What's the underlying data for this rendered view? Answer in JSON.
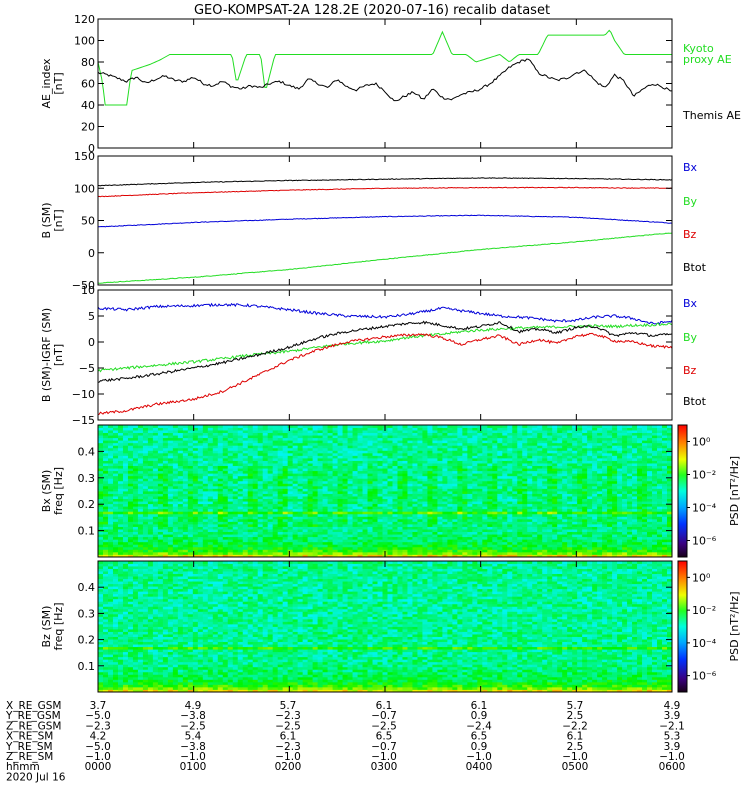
{
  "title": "GEO-KOMPSAT-2A 128.2E (2020-07-16) recalib dataset",
  "colors": {
    "bx": "#0000d8",
    "by": "#22dd22",
    "bz": "#dd0000",
    "btot": "#000000",
    "kyoto": "#22dd22",
    "themis": "#000000"
  },
  "chart_data": [
    {
      "type": "line",
      "panel": "ae",
      "ylabel": [
        "AE_index",
        "[nT]"
      ],
      "ylim": [
        0,
        120
      ],
      "yticks": [
        0,
        20,
        40,
        60,
        80,
        100,
        120
      ],
      "xlim": [
        0,
        6
      ],
      "series": [
        {
          "name": "Kyoto proxy AE",
          "legend": [
            "Kyoto",
            "proxy AE"
          ],
          "color_key": "kyoto",
          "x": [
            0,
            0.05,
            0.07,
            0.3,
            0.35,
            0.45,
            0.55,
            0.65,
            0.75,
            0.9,
            1.4,
            1.45,
            1.55,
            1.7,
            1.75,
            1.85,
            1.95,
            2.0,
            2.05,
            3.45,
            3.5,
            3.6,
            3.7,
            3.85,
            3.95,
            4.2,
            4.3,
            4.4,
            4.6,
            4.7,
            4.8,
            5.3,
            5.35,
            5.4,
            5.5,
            5.6,
            6.0
          ],
          "y": [
            80,
            60,
            40,
            40,
            72,
            75,
            78,
            82,
            87,
            87,
            87,
            60,
            87,
            87,
            52,
            87,
            87,
            87,
            87,
            87,
            87,
            108,
            87,
            87,
            80,
            87,
            80,
            87,
            87,
            105,
            105,
            105,
            110,
            100,
            87,
            87,
            87
          ]
        },
        {
          "name": "Themis AE",
          "legend": [
            "Themis AE"
          ],
          "color_key": "themis",
          "x": [
            0,
            0.1,
            0.2,
            0.3,
            0.4,
            0.5,
            0.6,
            0.7,
            0.8,
            0.9,
            1.0,
            1.1,
            1.2,
            1.3,
            1.4,
            1.5,
            1.6,
            1.7,
            1.8,
            1.9,
            2.0,
            2.1,
            2.2,
            2.3,
            2.4,
            2.5,
            2.6,
            2.7,
            2.8,
            2.9,
            3.0,
            3.1,
            3.2,
            3.3,
            3.4,
            3.5,
            3.6,
            3.7,
            3.8,
            3.9,
            4.0,
            4.1,
            4.2,
            4.3,
            4.4,
            4.5,
            4.6,
            4.7,
            4.8,
            4.9,
            5.0,
            5.1,
            5.2,
            5.3,
            5.4,
            5.5,
            5.6,
            5.7,
            5.8,
            5.9,
            6.0
          ],
          "y": [
            70,
            68,
            65,
            62,
            66,
            60,
            64,
            67,
            63,
            62,
            66,
            60,
            58,
            62,
            57,
            55,
            58,
            56,
            60,
            62,
            58,
            55,
            64,
            60,
            56,
            64,
            57,
            54,
            58,
            60,
            53,
            43,
            48,
            52,
            45,
            55,
            47,
            45,
            50,
            52,
            55,
            60,
            67,
            75,
            80,
            83,
            70,
            66,
            63,
            65,
            70,
            72,
            62,
            56,
            68,
            62,
            48,
            55,
            60,
            57,
            52
          ]
        }
      ]
    },
    {
      "type": "line",
      "panel": "bsm",
      "ylabel": [
        "B (SM)",
        "[nT]"
      ],
      "ylim": [
        -50,
        150
      ],
      "yticks": [
        -50,
        0,
        50,
        100,
        150
      ],
      "xlim": [
        0,
        6
      ],
      "series": [
        {
          "name": "Bx",
          "color_key": "bx",
          "x": [
            0,
            1,
            2,
            3,
            4,
            5,
            6
          ],
          "y": [
            40,
            47,
            52,
            56,
            58,
            55,
            46
          ]
        },
        {
          "name": "By",
          "color_key": "by",
          "x": [
            0,
            1,
            2,
            3,
            4,
            5,
            6
          ],
          "y": [
            -47,
            -38,
            -26,
            -10,
            5,
            17,
            31
          ]
        },
        {
          "name": "Bz",
          "color_key": "bz",
          "x": [
            0,
            1,
            2,
            3,
            4,
            5,
            6
          ],
          "y": [
            87,
            93,
            97,
            100,
            101,
            101,
            100
          ]
        },
        {
          "name": "Btot",
          "color_key": "btot",
          "x": [
            0,
            1,
            2,
            3,
            4,
            5,
            6
          ],
          "y": [
            104,
            109,
            112,
            114,
            116,
            115,
            113
          ]
        }
      ]
    },
    {
      "type": "line",
      "panel": "bdiff",
      "ylabel": [
        "B (SM)-IGRF (SM)",
        "[nT]"
      ],
      "ylim": [
        -15,
        10
      ],
      "yticks": [
        -15,
        -10,
        -5,
        0,
        5,
        10
      ],
      "xlim": [
        0,
        6
      ],
      "series": [
        {
          "name": "Bx",
          "color_key": "bx",
          "x": [
            0,
            0.3,
            0.6,
            1.0,
            1.3,
            1.6,
            2.0,
            2.3,
            2.6,
            3.0,
            3.2,
            3.4,
            3.6,
            3.8,
            4.0,
            4.2,
            4.4,
            4.6,
            4.8,
            5.0,
            5.2,
            5.4,
            5.6,
            5.8,
            6.0
          ],
          "y": [
            6.5,
            6.2,
            6.8,
            7.0,
            7.2,
            7.0,
            6.2,
            5.5,
            5.0,
            4.8,
            5.2,
            5.8,
            6.5,
            6.0,
            5.5,
            5.0,
            4.8,
            4.5,
            4.0,
            4.2,
            4.8,
            5.0,
            4.5,
            3.5,
            4.0
          ]
        },
        {
          "name": "By",
          "color_key": "by",
          "x": [
            0,
            0.3,
            0.6,
            1.0,
            1.3,
            1.6,
            2.0,
            2.3,
            2.6,
            3.0,
            3.2,
            3.4,
            3.6,
            3.8,
            4.0,
            4.2,
            4.4,
            4.6,
            4.8,
            5.0,
            5.2,
            5.4,
            5.6,
            5.8,
            6.0
          ],
          "y": [
            -5.5,
            -5.0,
            -4.5,
            -3.8,
            -3.2,
            -2.5,
            -1.8,
            -1.0,
            -0.3,
            0.2,
            0.8,
            1.2,
            1.5,
            2.0,
            2.3,
            2.5,
            2.7,
            2.8,
            2.9,
            3.0,
            3.1,
            3.0,
            3.2,
            3.3,
            3.5
          ]
        },
        {
          "name": "Bz",
          "color_key": "bz",
          "x": [
            0,
            0.3,
            0.6,
            1.0,
            1.3,
            1.6,
            2.0,
            2.3,
            2.6,
            3.0,
            3.2,
            3.4,
            3.6,
            3.8,
            4.0,
            4.2,
            4.4,
            4.6,
            4.8,
            5.0,
            5.2,
            5.4,
            5.6,
            5.8,
            6.0
          ],
          "y": [
            -13.8,
            -13.2,
            -12.0,
            -11.0,
            -9.5,
            -7.0,
            -3.5,
            -1.5,
            0.0,
            1.0,
            1.3,
            1.5,
            0.8,
            -0.5,
            0.5,
            1.2,
            -0.5,
            0.5,
            -0.3,
            1.2,
            1.5,
            0.2,
            0.0,
            -0.8,
            -1.0
          ]
        },
        {
          "name": "Btot",
          "color_key": "btot",
          "x": [
            0,
            0.3,
            0.6,
            1.0,
            1.3,
            1.6,
            2.0,
            2.3,
            2.6,
            3.0,
            3.2,
            3.4,
            3.6,
            3.8,
            4.0,
            4.2,
            4.4,
            4.6,
            4.8,
            5.0,
            5.2,
            5.4,
            5.6,
            5.8,
            6.0
          ],
          "y": [
            -7.5,
            -7.0,
            -6.2,
            -5.0,
            -4.0,
            -2.8,
            -1.0,
            0.8,
            2.0,
            3.0,
            3.5,
            3.8,
            3.2,
            2.5,
            3.0,
            3.8,
            2.0,
            2.5,
            1.8,
            2.8,
            3.0,
            1.2,
            1.8,
            1.2,
            1.5
          ]
        }
      ],
      "legend_order": [
        "Bx",
        "By",
        "Bz",
        "Btot"
      ]
    },
    {
      "type": "heatmap",
      "panel": "spec_bx",
      "ylabel": [
        "Bx (SM)",
        "freq [Hz]"
      ],
      "ylim": [
        0,
        0.5
      ],
      "yticks": [
        0.1,
        0.2,
        0.3,
        0.4
      ],
      "xlim": [
        0,
        6
      ],
      "colorbar": {
        "label": "PSD [nT²/Hz]",
        "ticks": [
          "10⁰",
          "10⁻²",
          "10⁻⁴",
          "10⁻⁶"
        ],
        "log_min": -7,
        "log_max": 1
      }
    },
    {
      "type": "heatmap",
      "panel": "spec_bz",
      "ylabel": [
        "Bz (SM)",
        "freq [Hz]"
      ],
      "ylim": [
        0,
        0.5
      ],
      "yticks": [
        0.1,
        0.2,
        0.3,
        0.4
      ],
      "xlim": [
        0,
        6
      ],
      "colorbar": {
        "label": "PSD [nT²/Hz]",
        "ticks": [
          "10⁰",
          "10⁻²",
          "10⁻⁴",
          "10⁻⁶"
        ],
        "log_min": -7,
        "log_max": 1
      }
    }
  ],
  "ephemeris": {
    "rows": [
      {
        "label": "X_RE_GSM",
        "values": [
          "3.7",
          "4.9",
          "5.7",
          "6.1",
          "6.1",
          "5.7",
          "4.9"
        ]
      },
      {
        "label": "Y_RE_GSM",
        "values": [
          "−5.0",
          "−3.8",
          "−2.3",
          "−0.7",
          "0.9",
          "2.5",
          "3.9"
        ]
      },
      {
        "label": "Z_RE_GSM",
        "values": [
          "−2.3",
          "−2.5",
          "−2.5",
          "−2.5",
          "−2.4",
          "−2.2",
          "−2.1"
        ]
      },
      {
        "label": "X_RE_SM",
        "values": [
          "4.2",
          "5.4",
          "6.1",
          "6.5",
          "6.5",
          "6.1",
          "5.3"
        ]
      },
      {
        "label": "Y_RE_SM",
        "values": [
          "−5.0",
          "−3.8",
          "−2.3",
          "−0.7",
          "0.9",
          "2.5",
          "3.9"
        ]
      },
      {
        "label": "Z_RE_SM",
        "values": [
          "−1.0",
          "−1.0",
          "−1.0",
          "−1.0",
          "−1.0",
          "−1.0",
          "−1.0"
        ]
      },
      {
        "label": "hhmm",
        "values": [
          "0000",
          "0100",
          "0200",
          "0300",
          "0400",
          "0500",
          "0600"
        ]
      }
    ],
    "date": "2020 Jul 16"
  }
}
